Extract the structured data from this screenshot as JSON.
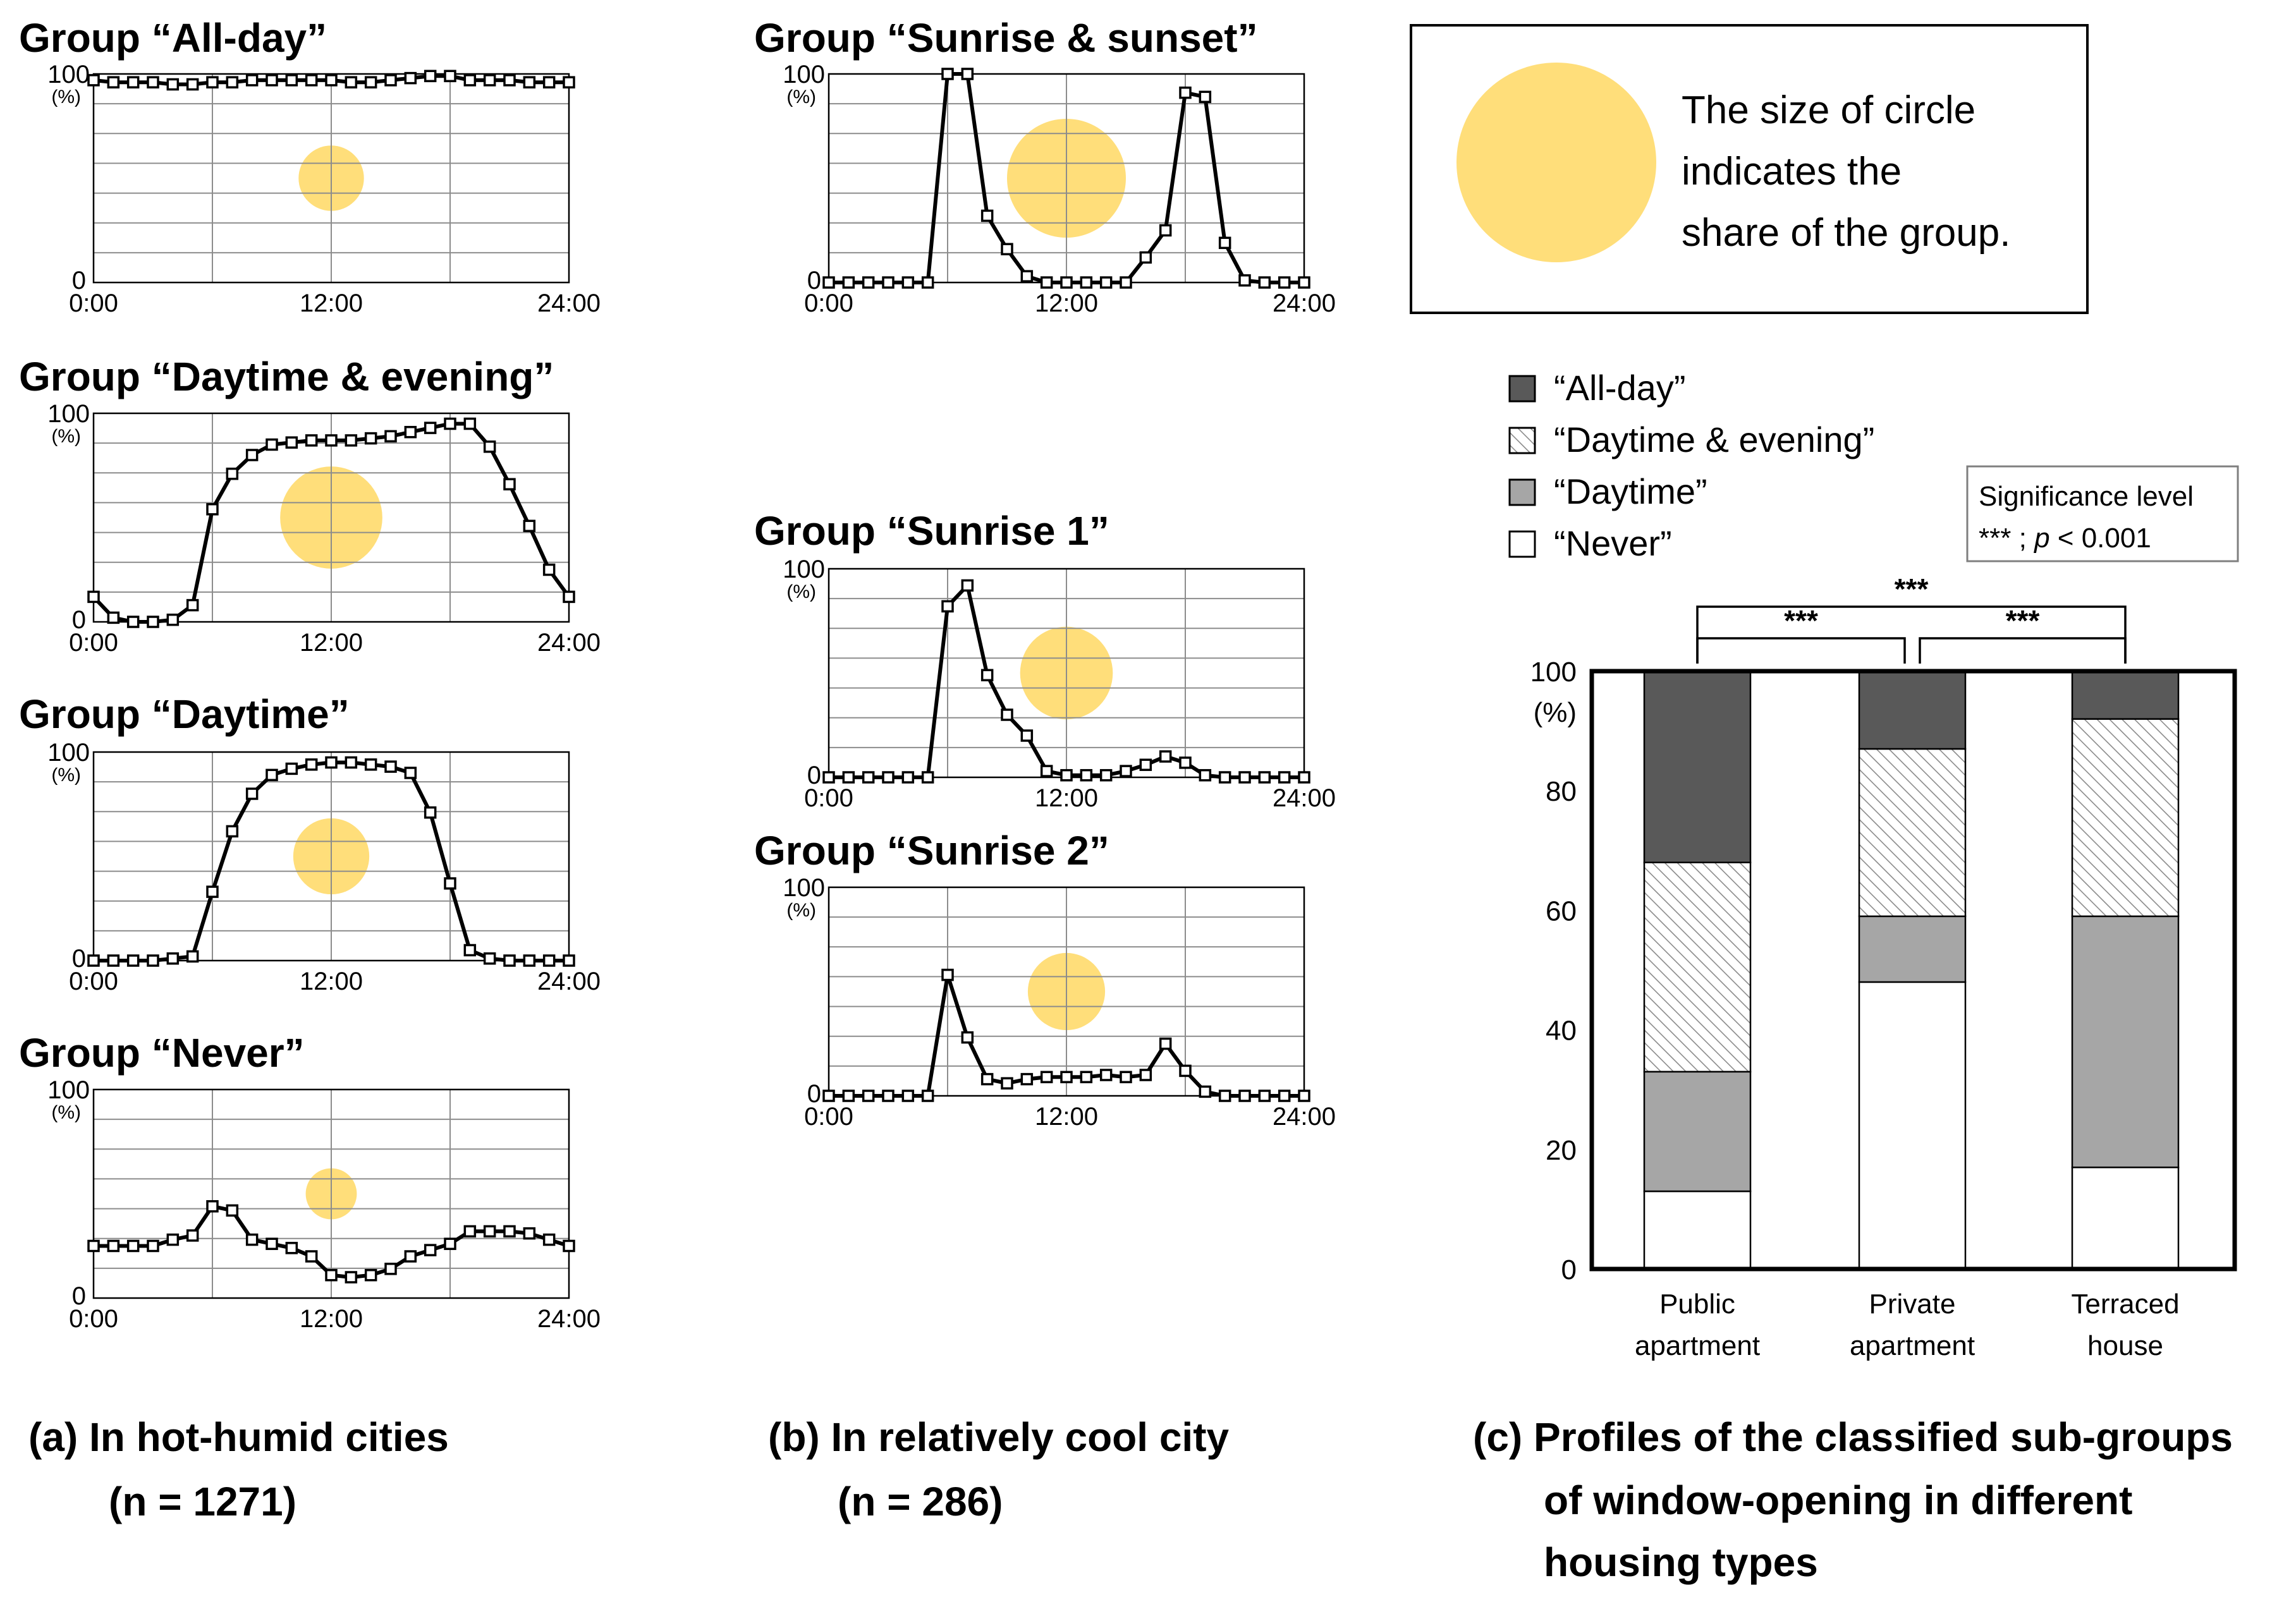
{
  "legend_note": {
    "lines": [
      "The size of circle",
      "indicates the",
      "share of the group."
    ],
    "circle_color": "#ffde7a"
  },
  "captions": {
    "a": [
      "(a) In hot-humid cities",
      "(n = 1271)"
    ],
    "b": [
      "(b) In relatively cool city",
      "(n = 286)"
    ],
    "c": [
      "(c) Profiles of the classified sub-groups",
      "of window-opening in different",
      "housing types"
    ]
  },
  "colors": {
    "all_day": "#595959",
    "daytime": "#a6a6a6",
    "never": "#ffffff",
    "circle": "#ffde7a",
    "grid": "#8c8c8c"
  },
  "chart_data": [
    {
      "id": "all-day",
      "type": "line",
      "title": "Group “All-day”",
      "y_top_label": "100",
      "y_unit": "(%)",
      "y_bottom_label": "0",
      "x_tick_labels": [
        "0:00",
        "12:00",
        "24:00"
      ],
      "x_hours": [
        0,
        1,
        2,
        3,
        4,
        5,
        6,
        7,
        8,
        9,
        10,
        11,
        12,
        13,
        14,
        15,
        16,
        17,
        18,
        19,
        20,
        21,
        22,
        23,
        24
      ],
      "values": [
        97,
        96,
        96,
        96,
        95,
        95,
        96,
        96,
        97,
        97,
        97,
        97,
        97,
        96,
        96,
        97,
        98,
        99,
        99,
        97,
        97,
        97,
        96,
        96,
        96
      ],
      "ylim": [
        0,
        100
      ],
      "circle_share": 0.55
    },
    {
      "id": "daytime-evening",
      "type": "line",
      "title": "Group “Daytime & evening”",
      "y_top_label": "100",
      "y_unit": "(%)",
      "y_bottom_label": "0",
      "x_tick_labels": [
        "0:00",
        "12:00",
        "24:00"
      ],
      "x_hours": [
        0,
        1,
        2,
        3,
        4,
        5,
        6,
        7,
        8,
        9,
        10,
        11,
        12,
        13,
        14,
        15,
        16,
        17,
        18,
        19,
        20,
        21,
        22,
        23,
        24
      ],
      "values": [
        12,
        2,
        0,
        0,
        1,
        8,
        54,
        71,
        80,
        85,
        86,
        87,
        87,
        87,
        88,
        89,
        91,
        93,
        95,
        95,
        84,
        66,
        46,
        25,
        12
      ],
      "ylim": [
        0,
        100
      ],
      "circle_share": 0.86
    },
    {
      "id": "daytime",
      "type": "line",
      "title": "Group “Daytime”",
      "y_top_label": "100",
      "y_unit": "(%)",
      "y_bottom_label": "0",
      "x_tick_labels": [
        "0:00",
        "12:00",
        "24:00"
      ],
      "x_hours": [
        0,
        1,
        2,
        3,
        4,
        5,
        6,
        7,
        8,
        9,
        10,
        11,
        12,
        13,
        14,
        15,
        16,
        17,
        18,
        19,
        20,
        21,
        22,
        23,
        24
      ],
      "values": [
        0,
        0,
        0,
        0,
        1,
        2,
        33,
        62,
        80,
        89,
        92,
        94,
        95,
        95,
        94,
        93,
        90,
        71,
        37,
        5,
        1,
        0,
        0,
        0,
        0
      ],
      "ylim": [
        0,
        100
      ],
      "circle_share": 0.64
    },
    {
      "id": "never",
      "type": "line",
      "title": "Group “Never”",
      "y_top_label": "100",
      "y_unit": "(%)",
      "y_bottom_label": "0",
      "x_tick_labels": [
        "0:00",
        "12:00",
        "24:00"
      ],
      "x_hours": [
        0,
        1,
        2,
        3,
        4,
        5,
        6,
        7,
        8,
        9,
        10,
        11,
        12,
        13,
        14,
        15,
        16,
        17,
        18,
        19,
        20,
        21,
        22,
        23,
        24
      ],
      "values": [
        25,
        25,
        25,
        25,
        28,
        30,
        44,
        42,
        28,
        26,
        24,
        20,
        11,
        10,
        11,
        14,
        20,
        23,
        26,
        32,
        32,
        32,
        31,
        28,
        25
      ],
      "ylim": [
        0,
        100
      ],
      "circle_share": 0.43
    },
    {
      "id": "sunrise-sunset",
      "type": "line",
      "title": "Group “Sunrise & sunset”",
      "y_top_label": "100",
      "y_unit": "(%)",
      "y_bottom_label": "0",
      "x_tick_labels": [
        "0:00",
        "12:00",
        "24:00"
      ],
      "x_hours": [
        0,
        1,
        2,
        3,
        4,
        5,
        6,
        7,
        8,
        9,
        10,
        11,
        12,
        13,
        14,
        15,
        16,
        17,
        18,
        19,
        20,
        21,
        22,
        23,
        24
      ],
      "values": [
        0,
        0,
        0,
        0,
        0,
        0,
        100,
        100,
        32,
        16,
        3,
        0,
        0,
        0,
        0,
        0,
        12,
        25,
        91,
        89,
        19,
        1,
        0,
        0,
        0
      ],
      "ylim": [
        0,
        100
      ],
      "circle_share": 1.0
    },
    {
      "id": "sunrise-1",
      "type": "line",
      "title": "Group “Sunrise 1”",
      "y_top_label": "100",
      "y_unit": "(%)",
      "y_bottom_label": "0",
      "x_tick_labels": [
        "0:00",
        "12:00",
        "24:00"
      ],
      "x_hours": [
        0,
        1,
        2,
        3,
        4,
        5,
        6,
        7,
        8,
        9,
        10,
        11,
        12,
        13,
        14,
        15,
        16,
        17,
        18,
        19,
        20,
        21,
        22,
        23,
        24
      ],
      "values": [
        0,
        0,
        0,
        0,
        0,
        0,
        82,
        92,
        49,
        30,
        20,
        3,
        1,
        1,
        1,
        3,
        6,
        10,
        7,
        1,
        0,
        0,
        0,
        0,
        0
      ],
      "ylim": [
        0,
        100
      ],
      "circle_share": 0.78
    },
    {
      "id": "sunrise-2",
      "type": "line",
      "title": "Group “Sunrise 2”",
      "y_top_label": "100",
      "y_unit": "(%)",
      "y_bottom_label": "0",
      "x_tick_labels": [
        "0:00",
        "12:00",
        "24:00"
      ],
      "x_hours": [
        0,
        1,
        2,
        3,
        4,
        5,
        6,
        7,
        8,
        9,
        10,
        11,
        12,
        13,
        14,
        15,
        16,
        17,
        18,
        19,
        20,
        21,
        22,
        23,
        24
      ],
      "values": [
        0,
        0,
        0,
        0,
        0,
        0,
        58,
        28,
        8,
        6,
        8,
        9,
        9,
        9,
        10,
        9,
        10,
        25,
        12,
        2,
        0,
        0,
        0,
        0,
        0
      ],
      "ylim": [
        0,
        100
      ],
      "circle_share": 0.65
    },
    {
      "id": "housing-profiles",
      "type": "bar",
      "stacked": true,
      "categories": [
        [
          "Public",
          "apartment"
        ],
        [
          "Private",
          "apartment"
        ],
        [
          "Terraced",
          "house"
        ]
      ],
      "series": [
        {
          "key": "never",
          "name": "“Never”",
          "values": [
            13,
            48,
            17
          ]
        },
        {
          "key": "daytime",
          "name": "“Daytime”",
          "values": [
            20,
            11,
            42
          ]
        },
        {
          "key": "daytime_evening",
          "name": "“Daytime & evening”",
          "values": [
            35,
            28,
            33
          ]
        },
        {
          "key": "all_day",
          "name": "“All-day”",
          "values": [
            32,
            13,
            8
          ]
        }
      ],
      "legend_order": [
        "all_day",
        "daytime_evening",
        "daytime",
        "never"
      ],
      "ylim": [
        0,
        100
      ],
      "y_ticks": [
        0,
        20,
        40,
        60,
        80,
        100
      ],
      "y_unit": "(%)",
      "significance_box": {
        "title": "Significance level",
        "stars": "***",
        "sep": " ; ",
        "p": "p",
        "rest": " < 0.001"
      },
      "brackets": [
        {
          "from": 0,
          "to": 1,
          "label": "***"
        },
        {
          "from": 1,
          "to": 2,
          "label": "***"
        },
        {
          "from": 0,
          "to": 2,
          "label": "***"
        }
      ]
    }
  ]
}
